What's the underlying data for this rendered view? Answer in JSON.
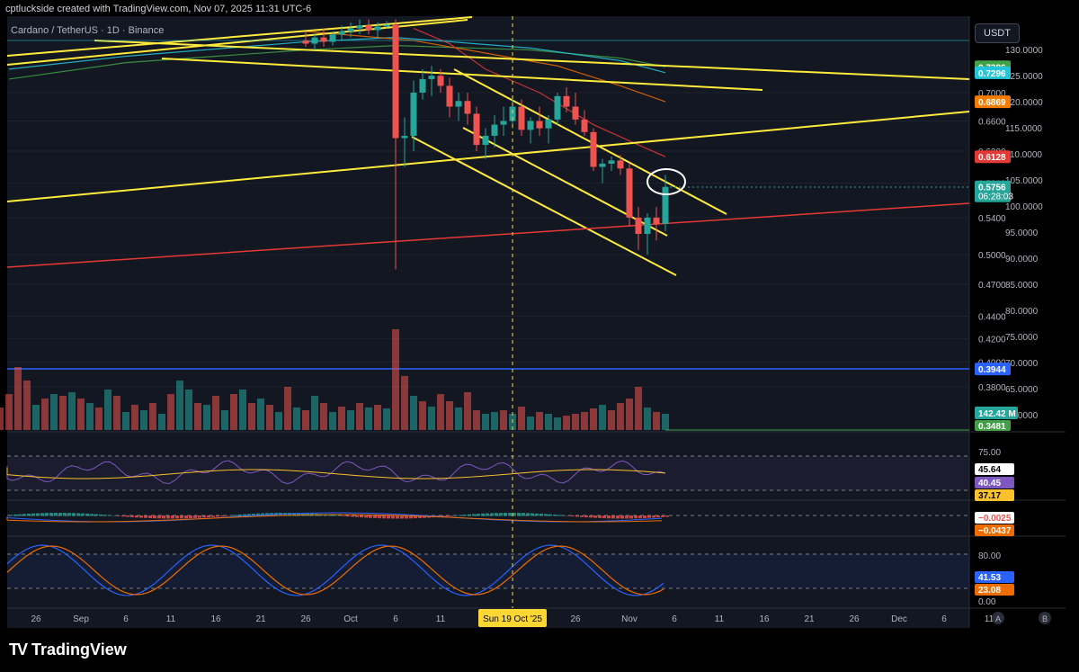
{
  "header": {
    "created_by": "cptluckside created with TradingView.com, Nov 07, 2025 11:31 UTC-6",
    "symbol": "Cardano / TetherUS · 1D · Binance",
    "currency": "USDT"
  },
  "brand": {
    "name": "TradingView",
    "logo": "TV"
  },
  "colors": {
    "bg": "#131722",
    "up": "#26a69a",
    "down": "#ef5350",
    "trend": "#ffeb3b",
    "support": "#2962ff"
  },
  "chart_data": {
    "type": "candlestick",
    "title": "",
    "price_axis": {
      "scale": "log",
      "ticks": [
        "0.7000",
        "0.6600",
        "0.6200",
        "0.5800",
        "0.5400",
        "0.5000",
        "0.4700",
        "0.4400",
        "0.4200",
        "0.4000",
        "0.3800"
      ],
      "tick_values": [
        0.7,
        0.66,
        0.62,
        0.58,
        0.54,
        0.5,
        0.47,
        0.44,
        0.42,
        0.4,
        0.38
      ],
      "secondary_ticks": [
        "130.0000",
        "125.0000",
        "120.0000",
        "115.0000",
        "110.0000",
        "105.0000",
        "100.0000",
        "95.0000",
        "90.0000",
        "85.0000",
        "80.0000",
        "75.0000",
        "70.0000",
        "65.0000",
        "60.0000"
      ],
      "range": [
        0.37,
        0.78
      ]
    },
    "price_labels": [
      {
        "text": "0.7386",
        "value": 0.7386,
        "color": "#43a047"
      },
      {
        "text": "0.7296",
        "value": 0.7296,
        "color": "#26c6da"
      },
      {
        "text": "0.6869",
        "value": 0.6869,
        "color": "#f57c00"
      },
      {
        "text": "0.6128",
        "value": 0.6128,
        "color": "#e53935"
      },
      {
        "text": "0.5756",
        "value": 0.5756,
        "color": "#26a69a",
        "sub": "06:28:03"
      },
      {
        "text": "0.3944",
        "value": 0.3944,
        "color": "#2962ff"
      }
    ],
    "volume_label": "142.42 M",
    "bottom_label": "0.3481",
    "x_axis": {
      "ticks": [
        {
          "label": "26",
          "day": -30
        },
        {
          "label": "Sep",
          "day": -25
        },
        {
          "label": "6",
          "day": -20
        },
        {
          "label": "11",
          "day": -15
        },
        {
          "label": "16",
          "day": -10
        },
        {
          "label": "21",
          "day": -5
        },
        {
          "label": "26",
          "day": 0
        },
        {
          "label": "Oct",
          "day": 5
        },
        {
          "label": "6",
          "day": 10
        },
        {
          "label": "11",
          "day": 15
        },
        {
          "label": "26",
          "day": 30
        },
        {
          "label": "Nov",
          "day": 36
        },
        {
          "label": "6",
          "day": 41
        },
        {
          "label": "11",
          "day": 46
        },
        {
          "label": "16",
          "day": 51
        },
        {
          "label": "21",
          "day": 56
        },
        {
          "label": "26",
          "day": 61
        },
        {
          "label": "Dec",
          "day": 66
        },
        {
          "label": "6",
          "day": 71
        },
        {
          "label": "11",
          "day": 76
        }
      ],
      "selected": {
        "label": "Sun 19 Oct '25",
        "day": 23
      }
    },
    "candles": [
      {
        "day": 0,
        "o": 0.78,
        "h": 0.795,
        "l": 0.77,
        "c": 0.775
      },
      {
        "day": 1,
        "o": 0.775,
        "h": 0.79,
        "l": 0.765,
        "c": 0.785
      },
      {
        "day": 2,
        "o": 0.785,
        "h": 0.8,
        "l": 0.77,
        "c": 0.778
      },
      {
        "day": 3,
        "o": 0.778,
        "h": 0.795,
        "l": 0.772,
        "c": 0.79
      },
      {
        "day": 4,
        "o": 0.79,
        "h": 0.805,
        "l": 0.78,
        "c": 0.795
      },
      {
        "day": 5,
        "o": 0.795,
        "h": 0.81,
        "l": 0.785,
        "c": 0.8
      },
      {
        "day": 6,
        "o": 0.8,
        "h": 0.815,
        "l": 0.79,
        "c": 0.805
      },
      {
        "day": 7,
        "o": 0.805,
        "h": 0.815,
        "l": 0.79,
        "c": 0.797
      },
      {
        "day": 8,
        "o": 0.797,
        "h": 0.81,
        "l": 0.785,
        "c": 0.803
      },
      {
        "day": 9,
        "o": 0.803,
        "h": 0.812,
        "l": 0.8,
        "c": 0.806
      },
      {
        "day": 10,
        "o": 0.806,
        "h": 0.815,
        "l": 0.485,
        "c": 0.637
      },
      {
        "day": 11,
        "o": 0.637,
        "h": 0.665,
        "l": 0.6,
        "c": 0.64
      },
      {
        "day": 12,
        "o": 0.64,
        "h": 0.718,
        "l": 0.62,
        "c": 0.7
      },
      {
        "day": 13,
        "o": 0.7,
        "h": 0.735,
        "l": 0.69,
        "c": 0.72
      },
      {
        "day": 14,
        "o": 0.72,
        "h": 0.74,
        "l": 0.695,
        "c": 0.725
      },
      {
        "day": 15,
        "o": 0.725,
        "h": 0.735,
        "l": 0.7,
        "c": 0.71
      },
      {
        "day": 16,
        "o": 0.71,
        "h": 0.722,
        "l": 0.665,
        "c": 0.68
      },
      {
        "day": 17,
        "o": 0.68,
        "h": 0.7,
        "l": 0.66,
        "c": 0.688
      },
      {
        "day": 18,
        "o": 0.688,
        "h": 0.7,
        "l": 0.655,
        "c": 0.67
      },
      {
        "day": 19,
        "o": 0.67,
        "h": 0.68,
        "l": 0.62,
        "c": 0.628
      },
      {
        "day": 20,
        "o": 0.628,
        "h": 0.65,
        "l": 0.61,
        "c": 0.64
      },
      {
        "day": 21,
        "o": 0.64,
        "h": 0.668,
        "l": 0.625,
        "c": 0.655
      },
      {
        "day": 22,
        "o": 0.655,
        "h": 0.68,
        "l": 0.64,
        "c": 0.66
      },
      {
        "day": 23,
        "o": 0.66,
        "h": 0.69,
        "l": 0.65,
        "c": 0.68
      },
      {
        "day": 24,
        "o": 0.68,
        "h": 0.69,
        "l": 0.64,
        "c": 0.648
      },
      {
        "day": 25,
        "o": 0.648,
        "h": 0.665,
        "l": 0.63,
        "c": 0.66
      },
      {
        "day": 26,
        "o": 0.66,
        "h": 0.68,
        "l": 0.64,
        "c": 0.65
      },
      {
        "day": 27,
        "o": 0.65,
        "h": 0.668,
        "l": 0.63,
        "c": 0.662
      },
      {
        "day": 28,
        "o": 0.662,
        "h": 0.7,
        "l": 0.655,
        "c": 0.695
      },
      {
        "day": 29,
        "o": 0.695,
        "h": 0.708,
        "l": 0.672,
        "c": 0.68
      },
      {
        "day": 30,
        "o": 0.68,
        "h": 0.7,
        "l": 0.655,
        "c": 0.662
      },
      {
        "day": 31,
        "o": 0.662,
        "h": 0.675,
        "l": 0.64,
        "c": 0.645
      },
      {
        "day": 32,
        "o": 0.645,
        "h": 0.65,
        "l": 0.595,
        "c": 0.6
      },
      {
        "day": 33,
        "o": 0.6,
        "h": 0.61,
        "l": 0.58,
        "c": 0.604
      },
      {
        "day": 34,
        "o": 0.604,
        "h": 0.613,
        "l": 0.595,
        "c": 0.608
      },
      {
        "day": 35,
        "o": 0.608,
        "h": 0.615,
        "l": 0.59,
        "c": 0.598
      },
      {
        "day": 36,
        "o": 0.598,
        "h": 0.605,
        "l": 0.53,
        "c": 0.54
      },
      {
        "day": 37,
        "o": 0.54,
        "h": 0.552,
        "l": 0.505,
        "c": 0.522
      },
      {
        "day": 38,
        "o": 0.522,
        "h": 0.545,
        "l": 0.5,
        "c": 0.54
      },
      {
        "day": 39,
        "o": 0.54,
        "h": 0.552,
        "l": 0.515,
        "c": 0.533
      },
      {
        "day": 40,
        "o": 0.533,
        "h": 0.59,
        "l": 0.525,
        "c": 0.5756
      }
    ],
    "volume": [
      {
        "day": -37,
        "v": 90,
        "up": true
      },
      {
        "day": -36,
        "v": 30,
        "up": false
      },
      {
        "day": -35,
        "v": 45,
        "up": true
      },
      {
        "day": -34,
        "v": 25,
        "up": false
      },
      {
        "day": -33,
        "v": 40,
        "up": false
      },
      {
        "day": -32,
        "v": 70,
        "up": false
      },
      {
        "day": -31,
        "v": 55,
        "up": false
      },
      {
        "day": -30,
        "v": 28,
        "up": true
      },
      {
        "day": -29,
        "v": 35,
        "up": false
      },
      {
        "day": -28,
        "v": 40,
        "up": true
      },
      {
        "day": -27,
        "v": 38,
        "up": false
      },
      {
        "day": -26,
        "v": 42,
        "up": true
      },
      {
        "day": -25,
        "v": 35,
        "up": false
      },
      {
        "day": -24,
        "v": 30,
        "up": true
      },
      {
        "day": -23,
        "v": 25,
        "up": false
      },
      {
        "day": -22,
        "v": 45,
        "up": true
      },
      {
        "day": -21,
        "v": 38,
        "up": false
      },
      {
        "day": -20,
        "v": 20,
        "up": true
      },
      {
        "day": -19,
        "v": 28,
        "up": false
      },
      {
        "day": -18,
        "v": 22,
        "up": true
      },
      {
        "day": -17,
        "v": 30,
        "up": false
      },
      {
        "day": -16,
        "v": 18,
        "up": true
      },
      {
        "day": -15,
        "v": 40,
        "up": false
      },
      {
        "day": -14,
        "v": 55,
        "up": true
      },
      {
        "day": -13,
        "v": 45,
        "up": true
      },
      {
        "day": -12,
        "v": 30,
        "up": false
      },
      {
        "day": -11,
        "v": 28,
        "up": true
      },
      {
        "day": -10,
        "v": 38,
        "up": false
      },
      {
        "day": -9,
        "v": 22,
        "up": true
      },
      {
        "day": -8,
        "v": 40,
        "up": false
      },
      {
        "day": -7,
        "v": 45,
        "up": true
      },
      {
        "day": -6,
        "v": 30,
        "up": false
      },
      {
        "day": -5,
        "v": 35,
        "up": true
      },
      {
        "day": -4,
        "v": 28,
        "up": false
      },
      {
        "day": -3,
        "v": 20,
        "up": true
      },
      {
        "day": -2,
        "v": 48,
        "up": false
      },
      {
        "day": -1,
        "v": 25,
        "up": true
      },
      {
        "day": 0,
        "v": 22,
        "up": false
      },
      {
        "day": 1,
        "v": 38,
        "up": true
      },
      {
        "day": 2,
        "v": 30,
        "up": false
      },
      {
        "day": 3,
        "v": 20,
        "up": true
      },
      {
        "day": 4,
        "v": 26,
        "up": false
      },
      {
        "day": 5,
        "v": 22,
        "up": true
      },
      {
        "day": 6,
        "v": 30,
        "up": false
      },
      {
        "day": 7,
        "v": 25,
        "up": true
      },
      {
        "day": 8,
        "v": 28,
        "up": false
      },
      {
        "day": 9,
        "v": 24,
        "up": true
      },
      {
        "day": 10,
        "v": 112,
        "up": false
      },
      {
        "day": 11,
        "v": 60,
        "up": false
      },
      {
        "day": 12,
        "v": 38,
        "up": true
      },
      {
        "day": 13,
        "v": 32,
        "up": false
      },
      {
        "day": 14,
        "v": 26,
        "up": true
      },
      {
        "day": 15,
        "v": 40,
        "up": false
      },
      {
        "day": 16,
        "v": 32,
        "up": false
      },
      {
        "day": 17,
        "v": 25,
        "up": true
      },
      {
        "day": 18,
        "v": 42,
        "up": false
      },
      {
        "day": 19,
        "v": 22,
        "up": false
      },
      {
        "day": 20,
        "v": 18,
        "up": true
      },
      {
        "day": 21,
        "v": 20,
        "up": true
      },
      {
        "day": 22,
        "v": 22,
        "up": false
      },
      {
        "day": 23,
        "v": 18,
        "up": true
      },
      {
        "day": 24,
        "v": 26,
        "up": false
      },
      {
        "day": 25,
        "v": 15,
        "up": true
      },
      {
        "day": 26,
        "v": 20,
        "up": false
      },
      {
        "day": 27,
        "v": 18,
        "up": true
      },
      {
        "day": 28,
        "v": 14,
        "up": true
      },
      {
        "day": 29,
        "v": 16,
        "up": false
      },
      {
        "day": 30,
        "v": 18,
        "up": false
      },
      {
        "day": 31,
        "v": 20,
        "up": false
      },
      {
        "day": 32,
        "v": 24,
        "up": false
      },
      {
        "day": 33,
        "v": 28,
        "up": true
      },
      {
        "day": 34,
        "v": 22,
        "up": false
      },
      {
        "day": 35,
        "v": 30,
        "up": false
      },
      {
        "day": 36,
        "v": 35,
        "up": false
      },
      {
        "day": 37,
        "v": 48,
        "up": false
      },
      {
        "day": 38,
        "v": 25,
        "up": true
      },
      {
        "day": 39,
        "v": 20,
        "up": false
      },
      {
        "day": 40,
        "v": 18,
        "up": true
      }
    ],
    "indicators": [
      {
        "name": "rsi",
        "ticks": [
          "75.00"
        ],
        "labels": [
          {
            "text": "45.64",
            "color": "#ffffff",
            "fg": "#000"
          },
          {
            "text": "40.45",
            "color": "#7e57c2",
            "fg": "#fff"
          },
          {
            "text": "37.17",
            "color": "#fbc02d",
            "fg": "#000"
          }
        ]
      },
      {
        "name": "macd",
        "labels": [
          {
            "text": "−0.0025",
            "color": "#ffffff",
            "fg": "#ef5350"
          },
          {
            "text": "−0.0437",
            "color": "#ef6c00",
            "fg": "#fff"
          }
        ]
      },
      {
        "name": "stoch",
        "ticks": [
          "80.00",
          "0.00"
        ],
        "labels": [
          {
            "text": "41.53",
            "color": "#2962ff",
            "fg": "#fff"
          },
          {
            "text": "23.08",
            "color": "#ef6c00",
            "fg": "#fff"
          }
        ]
      }
    ],
    "price_scale_buttons": [
      "A",
      "B"
    ]
  }
}
